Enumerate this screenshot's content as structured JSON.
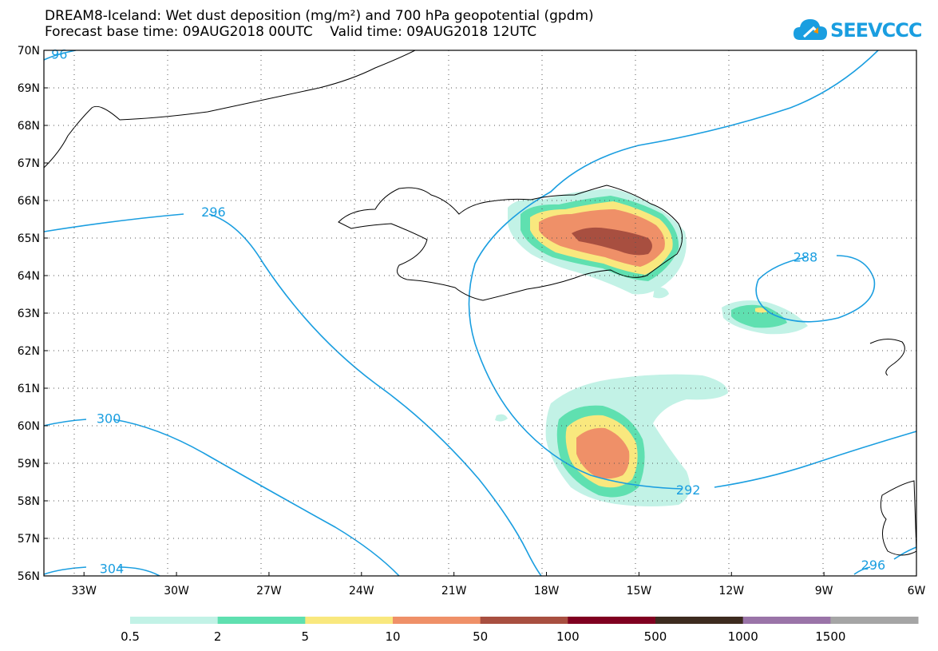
{
  "title": {
    "line1": "DREAM8-Iceland: Wet dust deposition (mg/m²) and 700 hPa geopotential (gpdm)",
    "line2": "Forecast base time: 09AUG2018 00UTC    Valid time: 09AUG2018 12UTC"
  },
  "logo": {
    "text": "SEEVCCC",
    "icon": "cloud-icon"
  },
  "axes": {
    "lat_labels": [
      "70N",
      "69N",
      "68N",
      "67N",
      "66N",
      "65N",
      "64N",
      "63N",
      "62N",
      "61N",
      "60N",
      "59N",
      "58N",
      "57N",
      "56N"
    ],
    "lon_labels": [
      "33W",
      "30W",
      "27W",
      "24W",
      "21W",
      "18W",
      "15W",
      "12W",
      "9W",
      "6W"
    ]
  },
  "contour_labels": [
    {
      "text": "296",
      "lon": -28.8,
      "lat": 65.7
    },
    {
      "text": "300",
      "lon": -32.2,
      "lat": 60.2
    },
    {
      "text": "304",
      "lon": -32.1,
      "lat": 56.2
    },
    {
      "text": "292",
      "lon": -13.4,
      "lat": 58.3
    },
    {
      "text": "288",
      "lon": -9.6,
      "lat": 64.5
    },
    {
      "text": "296",
      "lon": -7.4,
      "lat": 56.3
    },
    {
      "text": "96",
      "lon": -33.8,
      "lat": 69.9
    }
  ],
  "colorbar": {
    "labels": [
      "0.5",
      "2",
      "5",
      "10",
      "50",
      "100",
      "500",
      "1000",
      "1500"
    ],
    "colors": [
      "#c2f2e6",
      "#5fe0b0",
      "#f9e87e",
      "#ef9068",
      "#a84f40",
      "#800020",
      "#3d2b1f",
      "#9a74a8",
      "#a5a5a5"
    ]
  },
  "colors": {
    "contour": "#1a9ee0",
    "coast": "#000000",
    "grid": "#555555"
  }
}
